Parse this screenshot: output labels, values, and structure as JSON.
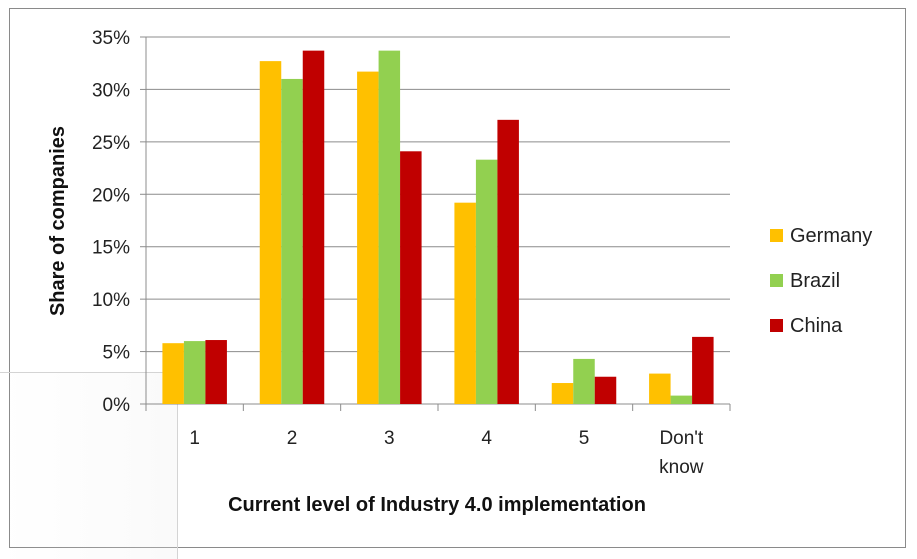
{
  "chart_data": {
    "type": "bar",
    "title": "",
    "xlabel": "Current level of Industry 4.0 implementation",
    "ylabel": "Share of companies",
    "categories": [
      "1",
      "2",
      "3",
      "4",
      "5",
      "Don't know"
    ],
    "ylim": [
      0,
      35
    ],
    "yticks": [
      "0%",
      "5%",
      "10%",
      "15%",
      "20%",
      "25%",
      "30%",
      "35%"
    ],
    "grid": true,
    "legend_position": "right",
    "series": [
      {
        "name": "Germany",
        "color": "#FFC000",
        "values": [
          5.8,
          32.7,
          31.7,
          19.2,
          2.0,
          2.9
        ]
      },
      {
        "name": "Brazil",
        "color": "#92D050",
        "values": [
          6.0,
          31.0,
          33.7,
          23.3,
          4.3,
          0.8
        ]
      },
      {
        "name": "China",
        "color": "#C00000",
        "values": [
          6.1,
          33.7,
          24.1,
          27.1,
          2.6,
          6.4
        ]
      }
    ]
  }
}
